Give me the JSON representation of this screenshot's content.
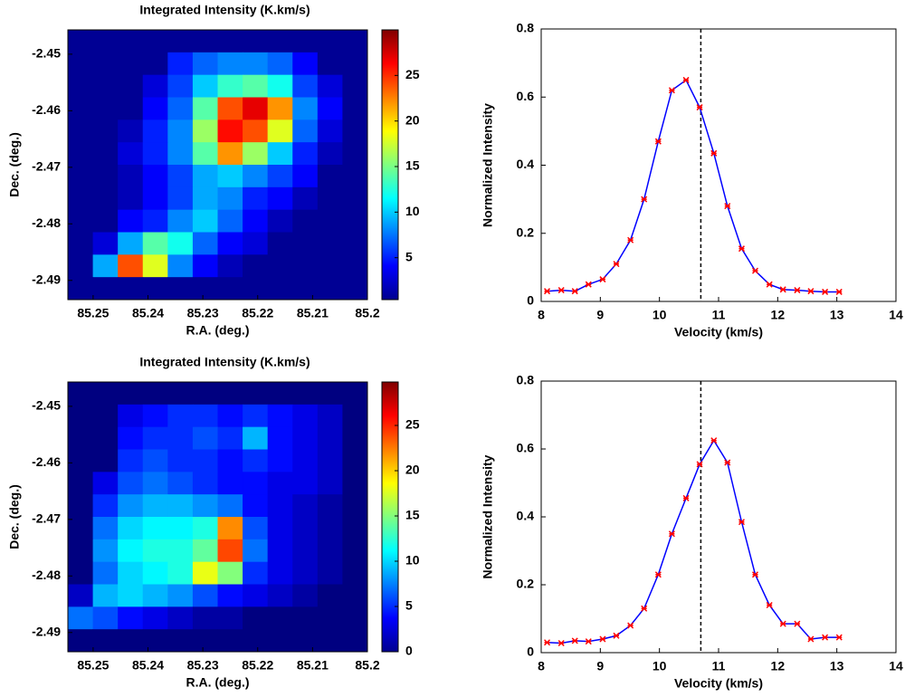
{
  "chart_data": [
    {
      "type": "heatmap",
      "title": "Integrated Intensity (K.km/s)",
      "xlabel": "R.A. (deg.)",
      "ylabel": "Dec. (deg.)",
      "xlim": [
        85.2546,
        85.2
      ],
      "ylim": [
        -2.4934,
        -2.4457
      ],
      "xticks": [
        85.25,
        85.24,
        85.23,
        85.22,
        85.21,
        85.2
      ],
      "yticks": [
        -2.45,
        -2.46,
        -2.47,
        -2.48,
        -2.49
      ],
      "clim": [
        0.4,
        30
      ],
      "cticks": [
        5,
        10,
        15,
        20,
        25
      ],
      "colormap": "jet",
      "z": [
        [
          1,
          1,
          1,
          1,
          1,
          1,
          1,
          1,
          1,
          1,
          1,
          1
        ],
        [
          1,
          1,
          1,
          1,
          5,
          7,
          8,
          8,
          7,
          4,
          1,
          1
        ],
        [
          1,
          1,
          1,
          3,
          6,
          10,
          13,
          14,
          12,
          6,
          3,
          1
        ],
        [
          1,
          1,
          1,
          4,
          7,
          14,
          24,
          27,
          22,
          8,
          4,
          1
        ],
        [
          1,
          1,
          2,
          5,
          8,
          16,
          26,
          24,
          18,
          7,
          3,
          1
        ],
        [
          1,
          1,
          3,
          5,
          8,
          14,
          22,
          16,
          10,
          5,
          2,
          1
        ],
        [
          1,
          1,
          2,
          4,
          6,
          9,
          10,
          8,
          6,
          4,
          1,
          1
        ],
        [
          1,
          1,
          2,
          4,
          6,
          9,
          8,
          5,
          4,
          2,
          1,
          1
        ],
        [
          1,
          1,
          4,
          5,
          8,
          10,
          7,
          4,
          2,
          1,
          1,
          1
        ],
        [
          1,
          3,
          9,
          14,
          12,
          7,
          4,
          3,
          1,
          1,
          1,
          1
        ],
        [
          1,
          9,
          24,
          18,
          8,
          4,
          2,
          1,
          1,
          1,
          1,
          1
        ],
        [
          1,
          1,
          1,
          1,
          1,
          1,
          1,
          1,
          1,
          1,
          1,
          1
        ]
      ]
    },
    {
      "type": "line",
      "xlabel": "Velocity (km/s)",
      "ylabel": "Normalized Intensity",
      "xlim": [
        8,
        14
      ],
      "ylim": [
        0,
        0.8
      ],
      "xticks": [
        8,
        9,
        10,
        11,
        12,
        13,
        14
      ],
      "yticks": [
        0,
        0.2,
        0.4,
        0.6,
        0.8
      ],
      "vline": 10.7,
      "x": [
        8.1,
        8.34,
        8.57,
        8.8,
        9.04,
        9.27,
        9.51,
        9.74,
        9.98,
        10.21,
        10.45,
        10.68,
        10.92,
        11.15,
        11.39,
        11.62,
        11.86,
        12.09,
        12.33,
        12.56,
        12.8,
        13.04
      ],
      "series": [
        {
          "color": "#0000ff",
          "marker_color": "#ff0000",
          "values": [
            0.03,
            0.033,
            0.03,
            0.05,
            0.065,
            0.11,
            0.18,
            0.3,
            0.47,
            0.62,
            0.65,
            0.57,
            0.435,
            0.28,
            0.155,
            0.09,
            0.05,
            0.035,
            0.033,
            0.03,
            0.028,
            0.028
          ]
        }
      ]
    },
    {
      "type": "heatmap",
      "title": "Integrated Intensity (K.km/s)",
      "xlabel": "R.A. (deg.)",
      "ylabel": "Dec. (deg.)",
      "xlim": [
        85.2546,
        85.2
      ],
      "ylim": [
        -2.4934,
        -2.4457
      ],
      "xticks": [
        85.25,
        85.24,
        85.23,
        85.22,
        85.21,
        85.2
      ],
      "yticks": [
        -2.45,
        -2.46,
        -2.47,
        -2.48,
        -2.49
      ],
      "clim": [
        0,
        29.8
      ],
      "cticks": [
        0,
        5,
        10,
        15,
        20,
        25
      ],
      "colormap": "jet",
      "z": [
        [
          0,
          0,
          0,
          0,
          0,
          0,
          0,
          0,
          0,
          0,
          0,
          0
        ],
        [
          0,
          0,
          3,
          4,
          5,
          5,
          4,
          5,
          4,
          3,
          2,
          0
        ],
        [
          0,
          0,
          4,
          5,
          5,
          6,
          5,
          9,
          4,
          3,
          2,
          0
        ],
        [
          0,
          0,
          5,
          6,
          5,
          5,
          4,
          5,
          4,
          3,
          2,
          0
        ],
        [
          0,
          3,
          6,
          7,
          6,
          5,
          4,
          4,
          3,
          3,
          2,
          0
        ],
        [
          0,
          5,
          8,
          9,
          9,
          8,
          7,
          4,
          3,
          2,
          1,
          0
        ],
        [
          0,
          7,
          10,
          11,
          11,
          12,
          22,
          6,
          3,
          2,
          1,
          0
        ],
        [
          0,
          8,
          11,
          12,
          12,
          14,
          24,
          7,
          3,
          2,
          1,
          0
        ],
        [
          0,
          7,
          10,
          11,
          12,
          18,
          15,
          5,
          3,
          2,
          1,
          0
        ],
        [
          2,
          9,
          10,
          9,
          8,
          6,
          4,
          3,
          2,
          1,
          0,
          0
        ],
        [
          7,
          6,
          4,
          3,
          2,
          1,
          1,
          0,
          0,
          0,
          0,
          0
        ],
        [
          0,
          0,
          0,
          0,
          0,
          0,
          0,
          0,
          0,
          0,
          0,
          0
        ]
      ]
    },
    {
      "type": "line",
      "xlabel": "Velocity (km/s)",
      "ylabel": "Normalized Intensity",
      "xlim": [
        8,
        14
      ],
      "ylim": [
        0,
        0.8
      ],
      "xticks": [
        8,
        9,
        10,
        11,
        12,
        13,
        14
      ],
      "yticks": [
        0,
        0.2,
        0.4,
        0.6,
        0.8
      ],
      "vline": 10.7,
      "x": [
        8.1,
        8.34,
        8.57,
        8.8,
        9.04,
        9.27,
        9.51,
        9.74,
        9.98,
        10.21,
        10.45,
        10.68,
        10.92,
        11.15,
        11.39,
        11.62,
        11.86,
        12.09,
        12.33,
        12.56,
        12.8,
        13.04
      ],
      "series": [
        {
          "color": "#0000ff",
          "marker_color": "#ff0000",
          "values": [
            0.03,
            0.028,
            0.035,
            0.033,
            0.04,
            0.05,
            0.08,
            0.13,
            0.23,
            0.35,
            0.455,
            0.555,
            0.625,
            0.56,
            0.385,
            0.23,
            0.14,
            0.085,
            0.085,
            0.04,
            0.045,
            0.045
          ]
        }
      ]
    }
  ]
}
